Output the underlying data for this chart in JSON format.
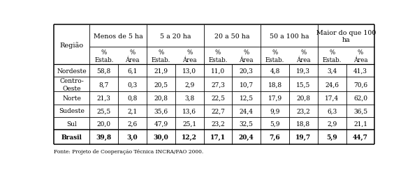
{
  "regions": [
    "Nordeste",
    "Centro-\nOeste",
    "Norte",
    "Sudeste",
    "Sul",
    "Brasil"
  ],
  "col_headers_l1": [
    "Menos de 5 ha",
    "5 a 20 ha",
    "20 a 50 ha",
    "50 a 100 ha",
    "Maior do que 100\nha"
  ],
  "col_headers_l2_line1": [
    "%",
    "%",
    "%",
    "%",
    "%",
    "%",
    "%",
    "%",
    "%",
    "%"
  ],
  "col_headers_l2_line2": [
    "Estab.",
    "Área",
    "Estab.",
    "Área",
    "Estab.",
    "Área",
    "Estab.",
    "Área",
    "Estab.",
    "Área"
  ],
  "data": [
    [
      "58,8",
      "6,1",
      "21,9",
      "13,0",
      "11,0",
      "20,3",
      "4,8",
      "19,3",
      "3,4",
      "41,3"
    ],
    [
      "8,7",
      "0,3",
      "20,5",
      "2,9",
      "27,3",
      "10,7",
      "18,8",
      "15,5",
      "24,6",
      "70,6"
    ],
    [
      "21,3",
      "0,8",
      "20,8",
      "3,8",
      "22,5",
      "12,5",
      "17,9",
      "20,8",
      "17,4",
      "62,0"
    ],
    [
      "25,5",
      "2,1",
      "35,6",
      "13,6",
      "22,7",
      "24,4",
      "9,9",
      "23,2",
      "6,3",
      "36,5"
    ],
    [
      "20,0",
      "2,6",
      "47,9",
      "25,1",
      "23,2",
      "32,5",
      "5,9",
      "18,8",
      "2,9",
      "21,1"
    ],
    [
      "39,8",
      "3,0",
      "30,0",
      "12,2",
      "17,1",
      "20,4",
      "7,6",
      "19,7",
      "5,9",
      "44,7"
    ]
  ],
  "fonte": "Fonte: Projeto de Cooperação Técnica INCRA/FAO 2000.",
  "background": "#ffffff"
}
